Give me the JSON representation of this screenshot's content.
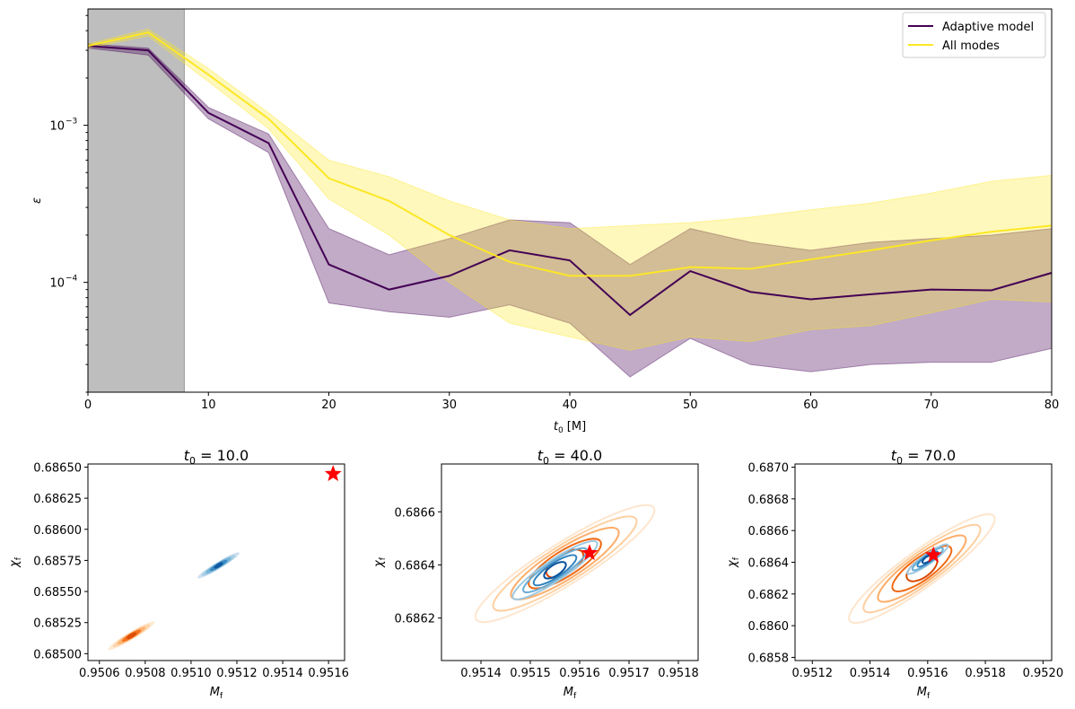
{
  "chart_data": [
    {
      "type": "line",
      "ylabel": "ε",
      "xlabel_main": "t",
      "xlabel_sub": "0",
      "xlabel_unit": " [M]",
      "xlim": [
        0,
        80
      ],
      "ylim": [
        2e-05,
        0.0055
      ],
      "yscale": "log",
      "grid": false,
      "legend_position": "top-right",
      "shaded_region": {
        "x": [
          0,
          8
        ],
        "color": "#bebebe"
      },
      "x_ticks": [
        0,
        10,
        20,
        30,
        40,
        50,
        60,
        70,
        80
      ],
      "x_tick_labels": [
        "0",
        "10",
        "20",
        "30",
        "40",
        "50",
        "60",
        "70",
        "80"
      ],
      "y_tick_labels": [
        {
          "base": "10",
          "exp": "−3",
          "value": 0.001
        },
        {
          "base": "10",
          "exp": "−4",
          "value": 0.0001
        }
      ],
      "x": [
        0,
        5,
        10,
        15,
        20,
        25,
        30,
        35,
        40,
        45,
        50,
        55,
        60,
        65,
        70,
        75,
        80
      ],
      "series": [
        {
          "name": "Adaptive model",
          "color": "#440154",
          "band_color": "#440154",
          "values": [
            0.0032,
            0.003,
            0.0012,
            0.00077,
            0.00013,
            9e-05,
            0.00011,
            0.00016,
            0.000138,
            6.2e-05,
            0.000118,
            8.7e-05,
            7.8e-05,
            8.4e-05,
            9e-05,
            8.9e-05,
            0.000115
          ],
          "lower": [
            0.0031,
            0.0028,
            0.0011,
            0.00067,
            7.4e-05,
            6.5e-05,
            6e-05,
            7.2e-05,
            5.5e-05,
            2.5e-05,
            4.4e-05,
            3e-05,
            2.7e-05,
            3e-05,
            3.1e-05,
            3.1e-05,
            3.8e-05
          ],
          "upper": [
            0.0033,
            0.0031,
            0.0013,
            0.00088,
            0.00022,
            0.00015,
            0.00019,
            0.00025,
            0.00024,
            0.00013,
            0.00022,
            0.00018,
            0.00016,
            0.00018,
            0.00019,
            0.0002,
            0.00022
          ]
        },
        {
          "name": "All modes",
          "color": "#fde725",
          "band_color": "#fde725",
          "values": [
            0.0032,
            0.0039,
            0.0021,
            0.0011,
            0.00046,
            0.00033,
            0.0002,
            0.000135,
            0.00011,
            0.00011,
            0.000125,
            0.000122,
            0.00014,
            0.00016,
            0.000185,
            0.00021,
            0.00023
          ],
          "lower": [
            0.0031,
            0.0037,
            0.0019,
            0.00095,
            0.00034,
            0.0002,
            0.0001,
            5.5e-05,
            4.5e-05,
            3.7e-05,
            4.5e-05,
            4.2e-05,
            5e-05,
            5.3e-05,
            6.4e-05,
            7.8e-05,
            7.5e-05
          ],
          "upper": [
            0.0033,
            0.0041,
            0.0023,
            0.0012,
            0.0006,
            0.00047,
            0.00033,
            0.00025,
            0.00022,
            0.00023,
            0.00024,
            0.00026,
            0.00029,
            0.00032,
            0.00037,
            0.00044,
            0.00048
          ]
        }
      ]
    },
    {
      "type": "scatter",
      "title_main": "t",
      "title_sub": "0",
      "title_rest": " = 10.0",
      "xlabel_main": "M",
      "xlabel_sub": "f",
      "ylabel_main": "χ",
      "ylabel_sub": "f",
      "xlim": [
        0.95055,
        0.95167
      ],
      "ylim": [
        0.684945,
        0.686525
      ],
      "x_ticks": [
        0.9506,
        0.9508,
        0.951,
        0.9512,
        0.9514,
        0.9516
      ],
      "x_tick_labels": [
        "0.9506",
        "0.9508",
        "0.9510",
        "0.9512",
        "0.9514",
        "0.9516"
      ],
      "y_ticks": [
        0.685,
        0.68525,
        0.6855,
        0.68575,
        0.686,
        0.68625,
        0.6865
      ],
      "y_tick_labels": [
        "0.68500",
        "0.68525",
        "0.68550",
        "0.68575",
        "0.68600",
        "0.68625",
        "0.68650"
      ],
      "truth": {
        "x": 0.95162,
        "y": 0.686445,
        "color": "#ff0000"
      },
      "distributions": [
        {
          "name": "",
          "colormap": "Blues",
          "center_x": 0.95112,
          "center_y": 0.68571,
          "half_length_x": 9e-05,
          "half_length_y": 0.0001,
          "width": 1e-05,
          "levels": 5
        },
        {
          "name": "",
          "colormap": "Oranges",
          "center_x": 0.95074,
          "center_y": 0.685145,
          "half_length_x": 0.0001,
          "half_length_y": 0.00011,
          "width": 1.1e-05,
          "levels": 5
        }
      ]
    },
    {
      "type": "scatter",
      "title_main": "t",
      "title_sub": "0",
      "title_rest": " = 40.0",
      "xlabel_main": "M",
      "xlabel_sub": "f",
      "ylabel_main": "χ",
      "ylabel_sub": "f",
      "xlim": [
        0.95132,
        0.95184
      ],
      "ylim": [
        0.68604,
        0.68678
      ],
      "x_ticks": [
        0.9514,
        0.9515,
        0.9516,
        0.9517,
        0.9518
      ],
      "x_tick_labels": [
        "0.9514",
        "0.9515",
        "0.9516",
        "0.9517",
        "0.9518"
      ],
      "y_ticks": [
        0.6862,
        0.6864,
        0.6866
      ],
      "y_tick_labels": [
        "0.6862",
        "0.6864",
        "0.6866"
      ],
      "truth": {
        "x": 0.95162,
        "y": 0.686445,
        "color": "#ff0000"
      },
      "distributions": [
        {
          "name": "",
          "colormap": "Blues",
          "center_x": 0.95155,
          "center_y": 0.68638,
          "half_length_x": 8.5e-05,
          "half_length_y": 0.000105,
          "width": 1.5e-05,
          "levels": 4
        },
        {
          "name": "",
          "colormap": "Oranges",
          "center_x": 0.95157,
          "center_y": 0.686405,
          "half_length_x": 0.00018,
          "half_length_y": 0.00021,
          "width": 3e-05,
          "levels": 5
        }
      ]
    },
    {
      "type": "scatter",
      "title_main": "t",
      "title_sub": "0",
      "title_rest": " = 70.0",
      "xlabel_main": "M",
      "xlabel_sub": "f",
      "ylabel_main": "χ",
      "ylabel_sub": "f",
      "xlim": [
        0.95114,
        0.95203
      ],
      "ylim": [
        0.68578,
        0.68702
      ],
      "x_ticks": [
        0.9512,
        0.9514,
        0.9516,
        0.9518,
        0.952
      ],
      "x_tick_labels": [
        "0.9512",
        "0.9514",
        "0.9516",
        "0.9518",
        "0.9520"
      ],
      "y_ticks": [
        0.6858,
        0.686,
        0.6862,
        0.6864,
        0.6866,
        0.6868,
        0.687
      ],
      "y_tick_labels": [
        "0.6858",
        "0.6860",
        "0.6862",
        "0.6864",
        "0.6866",
        "0.6868",
        "0.6870"
      ],
      "truth": {
        "x": 0.95162,
        "y": 0.686445,
        "color": "#ff0000"
      },
      "distributions": [
        {
          "name": "",
          "colormap": "Blues",
          "center_x": 0.9516,
          "center_y": 0.68642,
          "half_length_x": 7e-05,
          "half_length_y": 9e-05,
          "width": 1.2e-05,
          "levels": 4
        },
        {
          "name": "",
          "colormap": "Oranges",
          "center_x": 0.95158,
          "center_y": 0.68636,
          "half_length_x": 0.00025,
          "half_length_y": 0.00033,
          "width": 4.5e-05,
          "levels": 5
        }
      ]
    }
  ]
}
